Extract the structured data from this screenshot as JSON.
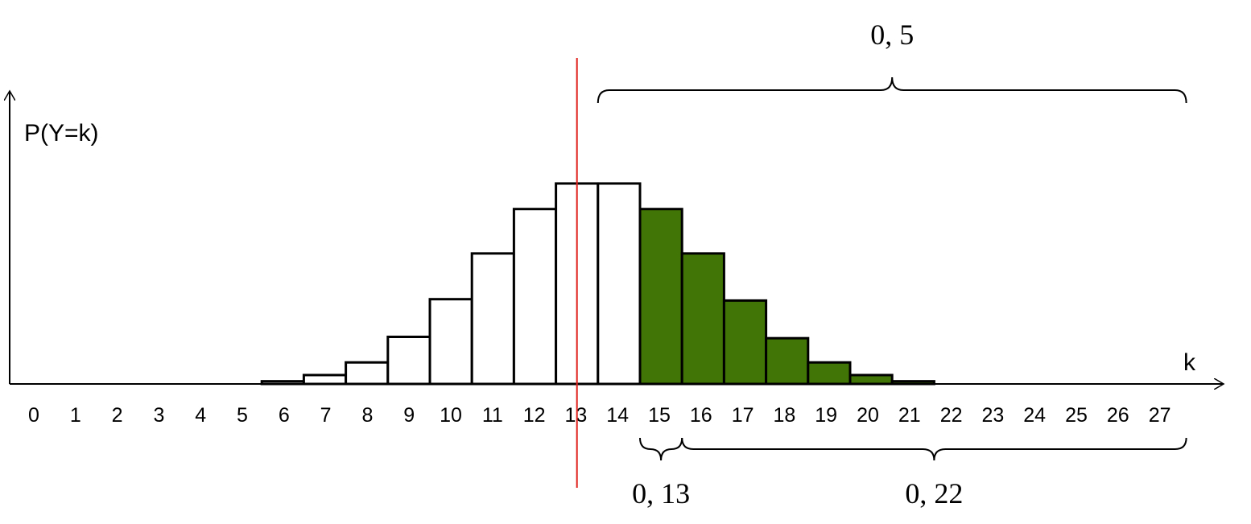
{
  "chart_data": {
    "type": "bar",
    "y_label": "P(Y=k)",
    "x_label": "k",
    "categories": [
      "0",
      "1",
      "2",
      "3",
      "4",
      "5",
      "6",
      "7",
      "8",
      "9",
      "10",
      "11",
      "12",
      "13",
      "14",
      "15",
      "16",
      "17",
      "18",
      "19",
      "20",
      "21",
      "22",
      "23",
      "24",
      "25",
      "26",
      "27"
    ],
    "values": [
      0,
      0,
      0,
      0,
      0,
      0,
      0.002,
      0.0066,
      0.016,
      0.035,
      0.063,
      0.097,
      0.13,
      0.149,
      0.149,
      0.13,
      0.097,
      0.062,
      0.034,
      0.016,
      0.0066,
      0.002,
      0,
      0,
      0,
      0,
      0,
      0
    ],
    "colors": [
      "#ffffff",
      "#ffffff",
      "#ffffff",
      "#ffffff",
      "#ffffff",
      "#ffffff",
      "#ffffff",
      "#ffffff",
      "#ffffff",
      "#ffffff",
      "#ffffff",
      "#ffffff",
      "#ffffff",
      "#ffffff",
      "#ffffff",
      "#417505",
      "#417505",
      "#417505",
      "#417505",
      "#417505",
      "#417505",
      "#417505",
      "#417505",
      "#417505",
      "#417505",
      "#417505",
      "#417505",
      "#417505"
    ],
    "ylim": [
      0,
      0.21
    ],
    "marker_x": 13.5,
    "marker_color": "#e0201b",
    "annotations": [
      {
        "text": "0, 5",
        "from": 14,
        "to": 27,
        "position": "above"
      },
      {
        "text": "0, 13",
        "from": 15,
        "to": 15,
        "position": "below"
      },
      {
        "text": "0, 22",
        "from": 16,
        "to": 27,
        "position": "below"
      }
    ]
  }
}
